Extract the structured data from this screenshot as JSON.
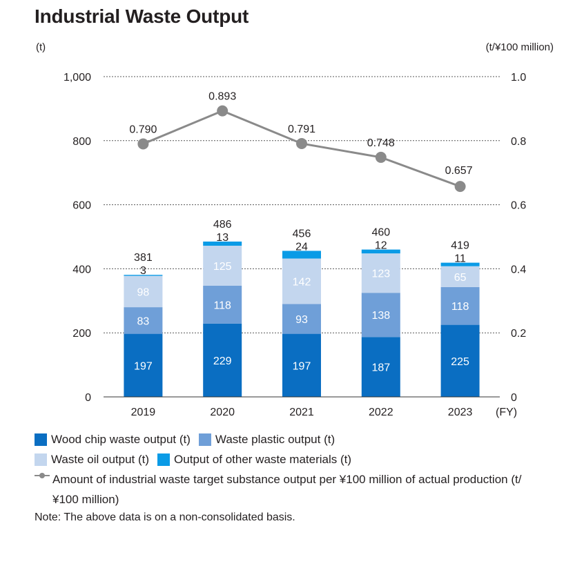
{
  "title": "Industrial Waste Output",
  "unit_left": "(t)",
  "unit_right": "(t/¥100 million)",
  "legend": {
    "wood": "Wood chip waste output (t)",
    "plastic": "Waste plastic output (t)",
    "oil": "Waste oil output (t)",
    "other": "Output of other waste materials (t)",
    "line": "Amount of industrial waste target substance output per ¥100 million of actual production (t/¥100 million)"
  },
  "note": "Note: The above data is on a non-consolidated basis.",
  "colors": {
    "wood": "#0a6ec2",
    "plastic": "#6f9fd8",
    "oil": "#c3d6ee",
    "other": "#0a9be6",
    "line": "#8a8a8a"
  },
  "chart_data": {
    "type": "bar",
    "categories": [
      "2019",
      "2020",
      "2021",
      "2022",
      "2023"
    ],
    "x_unit_label": "(FY)",
    "series": [
      {
        "name": "Wood chip waste output (t)",
        "values": [
          197,
          229,
          197,
          187,
          225
        ]
      },
      {
        "name": "Waste plastic output (t)",
        "values": [
          83,
          118,
          93,
          138,
          118
        ]
      },
      {
        "name": "Waste oil output (t)",
        "values": [
          98,
          125,
          142,
          123,
          65
        ]
      },
      {
        "name": "Output of other waste materials (t)",
        "values": [
          3,
          13,
          24,
          12,
          11
        ]
      }
    ],
    "totals": [
      381,
      486,
      456,
      460,
      419
    ],
    "line_series": {
      "name": "Amount of industrial waste target substance output per ¥100 million of actual production (t/¥100 million)",
      "values": [
        0.79,
        0.893,
        0.791,
        0.748,
        0.657
      ],
      "labels": [
        "0.790",
        "0.893",
        "0.791",
        "0.748",
        "0.657"
      ]
    },
    "ylim": [
      0,
      1000
    ],
    "y_ticks": [
      "0",
      "200",
      "400",
      "600",
      "800",
      "1,000"
    ],
    "y2lim": [
      0,
      1.0
    ],
    "y2_ticks": [
      "0",
      "0.2",
      "0.4",
      "0.6",
      "0.8",
      "1.0"
    ],
    "grid": "dotted",
    "legend_position": "bottom"
  }
}
